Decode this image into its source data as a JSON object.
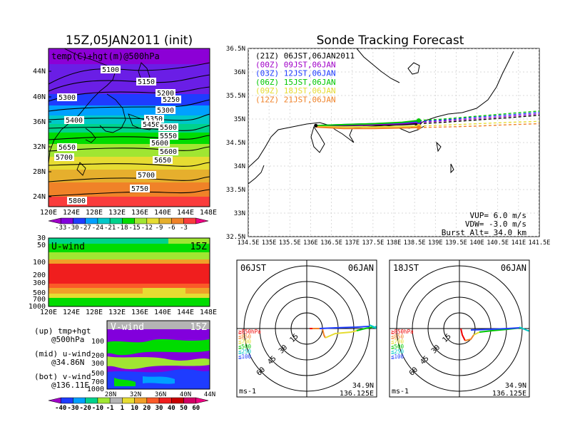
{
  "titles": {
    "init": "15Z,05JAN2011 (init)",
    "forecast": "Sonde Tracking Forecast"
  },
  "map500": {
    "label": "temp(C)+hgt(m)@500hPa",
    "lat_labels": [
      "44N",
      "40N",
      "36N",
      "32N",
      "28N",
      "24N"
    ],
    "lon_labels": [
      "120E",
      "124E",
      "128E",
      "132E",
      "136E",
      "140E",
      "144E",
      "148E"
    ],
    "contour_labels": [
      "5100",
      "5150",
      "5200",
      "5250",
      "5300",
      "5300",
      "5350",
      "5400",
      "5450",
      "5500",
      "5550",
      "5600",
      "5600",
      "5650",
      "5650",
      "5700",
      "5700",
      "5750",
      "5800"
    ],
    "temp_scale": [
      "-33",
      "-30",
      "-27",
      "-24",
      "-21",
      "-18",
      "-15",
      "-12",
      "-9",
      "-6",
      "-3"
    ],
    "temp_colors": [
      "#a000c8",
      "#8200dc",
      "#1e3cff",
      "#00a0ff",
      "#00c8c8",
      "#00d28c",
      "#00dc00",
      "#a0e632",
      "#e6dc32",
      "#e6af2d",
      "#f08228",
      "#fa3c3c",
      "#f00082"
    ]
  },
  "uwind": {
    "label": "U-wind",
    "time": "15Z",
    "p_labels": [
      "30",
      "50",
      "100",
      "200",
      "300",
      "500",
      "700",
      "1000"
    ],
    "lon_labels": [
      "120E",
      "124E",
      "128E",
      "132E",
      "136E",
      "140E",
      "144E",
      "148E"
    ]
  },
  "vwind": {
    "label": "V-wind",
    "time": "15Z",
    "p_labels": [
      "100",
      "200",
      "300",
      "500",
      "700",
      "1000"
    ],
    "lat_labels": [
      "28N",
      "32N",
      "36N",
      "40N",
      "44N"
    ]
  },
  "wind_scale": {
    "ticks": [
      "-40",
      "-30",
      "-20",
      "-10",
      "-1",
      "1",
      "10",
      "20",
      "30",
      "40",
      "50",
      "60"
    ],
    "colors": [
      "#a000c8",
      "#1e3cff",
      "#00a0ff",
      "#00d28c",
      "#a0e632",
      "#b4b4b4",
      "#e6dc32",
      "#f0a028",
      "#fa5a28",
      "#f01e1e",
      "#c80000",
      "#d20064",
      "#f00082"
    ]
  },
  "notes": {
    "l1": "(up) tmp+hgt",
    "l2": "@500hPa",
    "l3": "(mid) u-wind",
    "l4": "@34.86N",
    "l5": "(bot) v-wind",
    "l6": "@136.11E"
  },
  "track": {
    "legend": [
      {
        "label": "(21Z) 06JST,06JAN2011",
        "color": "#000000"
      },
      {
        "label": "(00Z) 09JST,06JAN",
        "color": "#a000c8"
      },
      {
        "label": "(03Z) 12JST,06JAN",
        "color": "#1e3cff"
      },
      {
        "label": "(06Z) 15JST,06JAN",
        "color": "#00c800"
      },
      {
        "label": "(09Z) 18JST,06JAN",
        "color": "#e6dc32"
      },
      {
        "label": "(12Z) 21JST,06JAN",
        "color": "#f08228"
      }
    ],
    "lat_labels": [
      "36.5N",
      "36N",
      "35.5N",
      "35N",
      "34.5N",
      "34N",
      "33.5N",
      "33N",
      "32.5N"
    ],
    "lon_labels": [
      "134.5E",
      "135E",
      "135.5E",
      "136E",
      "136.5E",
      "137E",
      "137.5E",
      "138E",
      "138.5E",
      "139E",
      "139.5E",
      "140E",
      "140.5E",
      "141E",
      "141.5E"
    ],
    "vup": "VUP= 6.0 m/s",
    "vdw": "VDW= -3.0 m/s",
    "burst": "Burst Alt= 34.0 km"
  },
  "chart_data": {
    "type": "line",
    "title": "Sonde Tracking Forecast",
    "xlim": [
      134.5,
      141.5
    ],
    "ylim": [
      32.5,
      36.5
    ],
    "launch": {
      "lon": 136.125,
      "lat": 34.86
    },
    "series": [
      {
        "name": "(21Z) 06JST,06JAN2011",
        "x": [
          136.125,
          136.8,
          137.5,
          138.2,
          138.6,
          139.2,
          140.0,
          140.8,
          141.5
        ],
        "y": [
          34.86,
          34.86,
          34.87,
          34.88,
          34.9,
          34.93,
          34.98,
          35.03,
          35.08
        ]
      },
      {
        "name": "(00Z) 09JST,06JAN",
        "x": [
          136.125,
          136.8,
          137.5,
          138.2,
          138.6,
          139.2,
          140.0,
          140.8,
          141.5
        ],
        "y": [
          34.86,
          34.87,
          34.88,
          34.9,
          34.93,
          34.96,
          35.01,
          35.06,
          35.11
        ]
      },
      {
        "name": "(03Z) 12JST,06JAN",
        "x": [
          136.125,
          136.8,
          137.5,
          138.2,
          138.6,
          139.2,
          140.0,
          140.8,
          141.5
        ],
        "y": [
          34.86,
          34.88,
          34.9,
          34.92,
          34.95,
          34.98,
          35.04,
          35.09,
          35.14
        ]
      },
      {
        "name": "(06Z) 15JST,06JAN",
        "x": [
          136.125,
          136.8,
          137.5,
          138.2,
          138.6,
          139.2,
          140.0,
          140.8,
          141.5
        ],
        "y": [
          34.86,
          34.88,
          34.9,
          34.93,
          34.97,
          35.0,
          35.06,
          35.12,
          35.17
        ]
      },
      {
        "name": "(09Z) 18JST,06JAN",
        "x": [
          136.125,
          136.8,
          137.5,
          138.2,
          138.6,
          139.2,
          140.0,
          140.8,
          141.5
        ],
        "y": [
          34.84,
          34.83,
          34.83,
          34.84,
          34.85,
          34.87,
          34.9,
          34.93,
          34.95
        ]
      },
      {
        "name": "(12Z) 21JST,06JAN",
        "x": [
          136.125,
          136.8,
          137.5,
          138.2,
          138.6,
          139.2,
          140.0,
          140.8,
          141.5
        ],
        "y": [
          34.83,
          34.8,
          34.8,
          34.81,
          34.82,
          34.83,
          34.85,
          34.88,
          34.9
        ]
      }
    ]
  },
  "hodo_left": {
    "time": "06JST",
    "date": "06JAN",
    "ring_labels": [
      "15",
      "30",
      "45",
      "60"
    ],
    "levels": [
      {
        "label": "≧850hPa",
        "color": "#f00000"
      },
      {
        "label": "≦850",
        "color": "#f08228"
      },
      {
        "label": "≦700",
        "color": "#e6dc32"
      },
      {
        "label": "≦500",
        "color": "#00c800"
      },
      {
        "label": "≦250",
        "color": "#00c8c8"
      },
      {
        "label": "≦100",
        "color": "#1e3cff"
      }
    ],
    "unit": "ms-1",
    "lat": "34.9N",
    "lon": "136.125E"
  },
  "hodo_right": {
    "time": "18JST",
    "date": "06JAN",
    "ring_labels": [
      "15",
      "30",
      "45",
      "60"
    ],
    "levels": [
      {
        "label": "≧850hPa",
        "color": "#f00000"
      },
      {
        "label": "≦850",
        "color": "#f08228"
      },
      {
        "label": "≦700",
        "color": "#e6dc32"
      },
      {
        "label": "≦500",
        "color": "#00c800"
      },
      {
        "label": "≦250",
        "color": "#00c8c8"
      },
      {
        "label": "≦100",
        "color": "#1e3cff"
      }
    ],
    "unit": "ms-1",
    "lat": "34.9N",
    "lon": "136.125E"
  }
}
